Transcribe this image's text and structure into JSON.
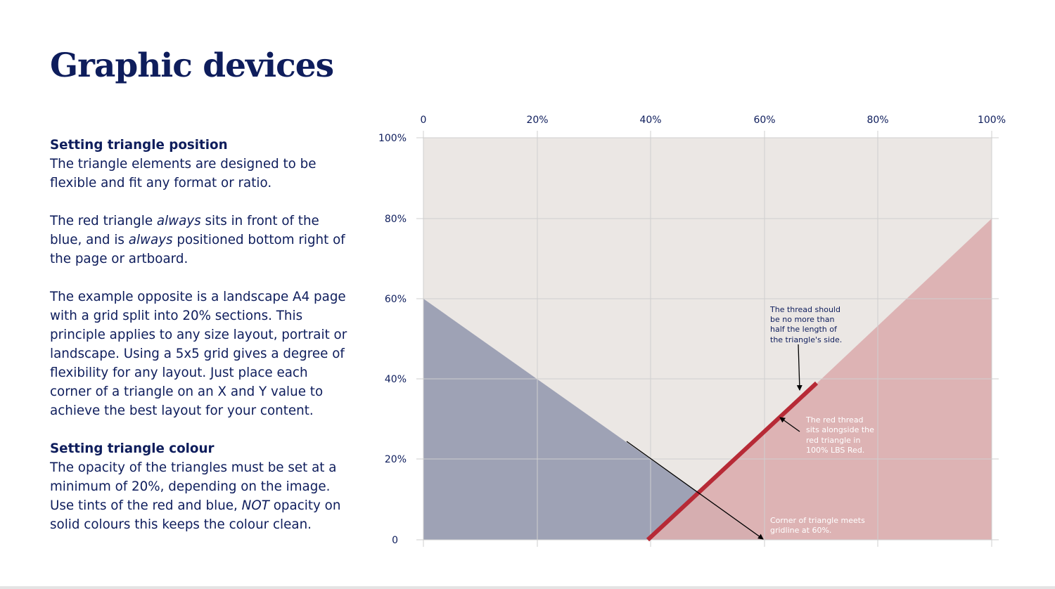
{
  "title": "Graphic devices",
  "sections": {
    "position_heading": "Setting triangle position",
    "p1": "The triangle elements are designed to be flexible and fit any format or ratio.",
    "p2": [
      "The red triangle ",
      "always",
      " sits in front of the blue, and is ",
      "always",
      " positioned bottom right of the page or artboard."
    ],
    "p3": "The example opposite is a landscape A4 page with a grid split into 20% sections. This principle applies to any size layout, portrait or landscape. Using a 5x5 grid gives a degree of flexibility for any layout. Just place each corner of a triangle on an X and Y value to achieve the best layout for your content.",
    "colour_heading": "Setting triangle colour",
    "p4": [
      "The opacity of the triangles must be set at a minimum of 20%, depending on the image. Use tints of the red and blue, ",
      "NOT",
      " opacity on solid colours this keeps the colour clean."
    ]
  },
  "diagram": {
    "x_ticks": [
      "0",
      "20%",
      "40%",
      "60%",
      "80%",
      "100%"
    ],
    "y_ticks": [
      "100%",
      "80%",
      "60%",
      "40%",
      "20%",
      "0"
    ],
    "colors": {
      "background": "#ebe7e4",
      "blue_triangle": "#9ea2b5",
      "red_triangle": "#dbafb0",
      "red_thread": "#b72a36",
      "gridline": "#cfcfcf",
      "text": "#0e1d5c"
    },
    "annotations": {
      "thread_length": [
        "The thread should",
        "be no more than",
        "half the length of",
        "the triangle's side."
      ],
      "red_thread": [
        "The red thread",
        "sits alongside the",
        "red triangle in",
        "100% LBS Red."
      ],
      "corner": [
        "Corner of triangle meets",
        "gridline at 60%."
      ]
    }
  }
}
